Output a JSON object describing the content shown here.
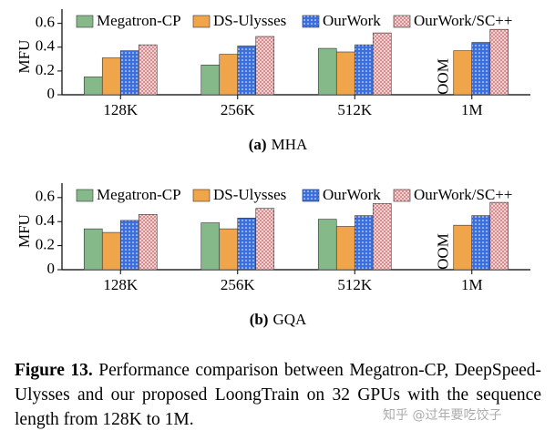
{
  "chart_data": [
    {
      "type": "bar",
      "subcaption_label": "(a)",
      "title": "MHA",
      "y_label": "MFU",
      "categories": [
        "128K",
        "256K",
        "512K",
        "1M"
      ],
      "series": [
        {
          "name": "Megatron-CP",
          "color": "#86b98a",
          "hatch": "none",
          "values": [
            0.15,
            0.25,
            0.39,
            null
          ]
        },
        {
          "name": "DS-Ulysses",
          "color": "#f0a54a",
          "hatch": "none",
          "values": [
            0.31,
            0.34,
            0.36,
            0.37
          ]
        },
        {
          "name": "OurWork",
          "color": "#3b6fe0",
          "hatch": "dots",
          "values": [
            0.37,
            0.41,
            0.42,
            0.44
          ]
        },
        {
          "name": "OurWork/SC++",
          "color": "#d9898b",
          "hatch": "crosshatch",
          "values": [
            0.42,
            0.49,
            0.52,
            0.55
          ]
        }
      ],
      "annotation": "OOM",
      "ylim": [
        0,
        0.72
      ],
      "yticks": [
        0,
        0.2,
        0.4,
        0.6
      ],
      "grid": false,
      "legend": "top"
    },
    {
      "type": "bar",
      "subcaption_label": "(b)",
      "title": "GQA",
      "y_label": "MFU",
      "categories": [
        "128K",
        "256K",
        "512K",
        "1M"
      ],
      "series": [
        {
          "name": "Megatron-CP",
          "color": "#86b98a",
          "hatch": "none",
          "values": [
            0.34,
            0.39,
            0.42,
            null
          ]
        },
        {
          "name": "DS-Ulysses",
          "color": "#f0a54a",
          "hatch": "none",
          "values": [
            0.31,
            0.34,
            0.36,
            0.37
          ]
        },
        {
          "name": "OurWork",
          "color": "#3b6fe0",
          "hatch": "dots",
          "values": [
            0.41,
            0.43,
            0.45,
            0.45
          ]
        },
        {
          "name": "OurWork/SC++",
          "color": "#d9898b",
          "hatch": "crosshatch",
          "values": [
            0.46,
            0.51,
            0.55,
            0.56
          ]
        }
      ],
      "annotation": "OOM",
      "ylim": [
        0,
        0.72
      ],
      "yticks": [
        0,
        0.2,
        0.4,
        0.6
      ],
      "grid": false,
      "legend": "top"
    }
  ],
  "caption": {
    "label": "Figure 13.",
    "text": "Performance comparison between Megatron-CP, DeepSpeed-Ulysses and our proposed LoongTrain on 32 GPUs with the sequence length from 128K to 1M."
  },
  "watermark": "知乎 @过年要吃饺子"
}
